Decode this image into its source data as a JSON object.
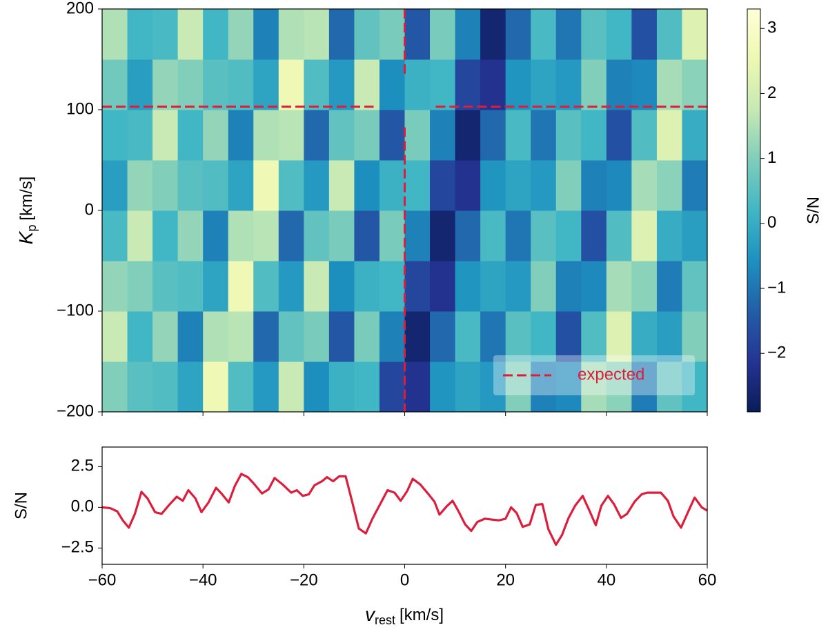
{
  "chart_data": [
    {
      "type": "heatmap",
      "x": [
        -57.5,
        -52.5,
        -47.5,
        -42.5,
        -37.5,
        -32.5,
        -27.5,
        -22.5,
        -17.5,
        -12.5,
        -7.5,
        -2.5,
        2.5,
        7.5,
        12.5,
        17.5,
        22.5,
        27.5,
        32.5,
        37.5,
        42.5,
        47.5,
        52.5,
        57.5
      ],
      "y": [
        -175,
        -125,
        -75,
        -25,
        25,
        75,
        125,
        175
      ],
      "z": [
        [
          1.0,
          0.5,
          0.4,
          -0.2,
          2.6,
          0.4,
          -0.4,
          1.8,
          -0.6,
          0.1,
          0.2,
          -1.8,
          -2.2,
          -0.5,
          -0.2,
          -0.4,
          1.0,
          -0.8,
          -0.7,
          1.4,
          1.1,
          -0.9,
          0.6,
          0.2
        ],
        [
          1.8,
          0.2,
          1.2,
          -0.8,
          1.5,
          1.6,
          -1.2,
          0.6,
          0.9,
          -1.5,
          0.9,
          -0.8,
          -2.6,
          -1.2,
          0.3,
          -1.0,
          0.5,
          0.2,
          -1.6,
          0.4,
          2.2,
          0.0,
          -0.3,
          1.0
        ],
        [
          1.2,
          1.0,
          0.5,
          0.4,
          -0.2,
          2.6,
          0.4,
          -0.4,
          1.8,
          -0.6,
          0.1,
          0.2,
          -1.8,
          -2.2,
          -0.5,
          -0.2,
          -0.4,
          1.0,
          -0.8,
          -0.7,
          1.4,
          1.1,
          -0.9,
          0.6
        ],
        [
          0.3,
          1.8,
          0.2,
          1.2,
          -0.8,
          1.5,
          1.6,
          -1.2,
          0.6,
          0.9,
          -1.5,
          0.9,
          -0.8,
          -2.6,
          -1.2,
          0.3,
          -1.0,
          0.5,
          0.2,
          -1.6,
          0.4,
          2.2,
          0.0,
          -0.3
        ],
        [
          -0.3,
          1.2,
          1.0,
          0.5,
          0.4,
          -0.2,
          2.6,
          0.4,
          -0.4,
          1.8,
          -0.6,
          0.1,
          0.2,
          -1.8,
          -2.2,
          -0.5,
          -0.2,
          -0.4,
          1.0,
          -0.8,
          -0.7,
          1.4,
          1.1,
          -0.9
        ],
        [
          0.2,
          0.3,
          1.8,
          0.2,
          1.2,
          -0.8,
          1.5,
          1.6,
          -1.2,
          0.6,
          0.9,
          -1.5,
          0.9,
          -0.8,
          -2.6,
          -1.2,
          0.3,
          -1.0,
          0.5,
          0.2,
          -1.6,
          0.4,
          2.2,
          0.0
        ],
        [
          0.8,
          -0.3,
          1.2,
          1.0,
          0.5,
          0.4,
          -0.2,
          2.6,
          0.4,
          -0.4,
          1.8,
          -0.6,
          0.1,
          0.2,
          -1.8,
          -2.2,
          -0.5,
          -0.2,
          -0.4,
          1.0,
          -0.8,
          -0.7,
          1.4,
          1.1
        ],
        [
          1.5,
          0.2,
          0.3,
          1.8,
          0.2,
          1.2,
          -0.8,
          1.5,
          1.6,
          -1.2,
          0.6,
          0.9,
          -1.5,
          0.9,
          -0.8,
          -2.6,
          -1.2,
          0.3,
          -1.0,
          0.5,
          0.2,
          -1.6,
          0.4,
          2.2
        ]
      ],
      "xlim": [
        -60,
        60
      ],
      "ylim": [
        -200,
        200
      ],
      "xticks": [
        -60,
        -40,
        -20,
        0,
        20,
        40,
        60
      ],
      "yticks": [
        {
          "value": -200,
          "label": "−200"
        },
        {
          "value": -100,
          "label": "−100"
        },
        0,
        100,
        200
      ],
      "ylabel": {
        "symbol": "K",
        "subscript": "p",
        "unit": "[km/s]"
      },
      "colormap": "YlGnBu_r",
      "clim": [
        -2.9,
        3.3
      ],
      "colorbar_ticks": [
        {
          "value": -2,
          "label": "−2"
        },
        {
          "value": -1,
          "label": "−1"
        },
        0,
        1,
        2,
        3
      ],
      "colorbar_label": "S/N",
      "expected": {
        "v": 0,
        "kp": 103,
        "color": "#dc1e3c",
        "label": "expected"
      },
      "legend": "lower right"
    },
    {
      "type": "line",
      "x": [
        -60,
        -58.4,
        -57,
        -55.9,
        -54.7,
        -53.5,
        -52.2,
        -51,
        -49.5,
        -48.2,
        -46.7,
        -45.2,
        -44,
        -42.9,
        -41.5,
        -40.3,
        -38.9,
        -37.4,
        -36.2,
        -34.9,
        -33.7,
        -32.4,
        -31.1,
        -29.9,
        -28.3,
        -27,
        -25.8,
        -24.2,
        -22.5,
        -21.4,
        -20.2,
        -19,
        -17.9,
        -16.4,
        -15.4,
        -14.2,
        -13,
        -11.7,
        -10.5,
        -9.1,
        -7.7,
        -6.4,
        -4.6,
        -3.4,
        -2,
        -0.8,
        0.5,
        1.6,
        3.1,
        4.6,
        5.9,
        6.9,
        8.3,
        9.5,
        10.6,
        12,
        13.2,
        14.4,
        15.9,
        17.2,
        18.7,
        20,
        21.1,
        22.2,
        23.4,
        24.8,
        26,
        27.3,
        28.5,
        30,
        31.2,
        32.5,
        33.8,
        35.3,
        36.7,
        37.9,
        39,
        40.3,
        41.5,
        42.9,
        44.1,
        45.6,
        47,
        48.1,
        49.6,
        50.8,
        52.2,
        53.3,
        54.8,
        56.1,
        57.5,
        58.9,
        60
      ],
      "values": [
        0.0,
        -0.05,
        -0.25,
        -0.8,
        -1.25,
        -0.4,
        0.95,
        0.55,
        -0.3,
        -0.4,
        0.15,
        0.65,
        0.4,
        1.05,
        0.55,
        -0.3,
        0.3,
        1.2,
        0.8,
        0.3,
        1.3,
        2.05,
        1.85,
        1.45,
        0.85,
        1.1,
        1.8,
        1.4,
        0.9,
        1.05,
        0.7,
        0.8,
        1.35,
        1.6,
        1.85,
        1.6,
        1.9,
        1.9,
        0.45,
        -1.3,
        -1.6,
        -0.7,
        0.35,
        1.05,
        0.9,
        0.4,
        1.0,
        1.75,
        1.4,
        0.85,
        0.35,
        -0.45,
        0.05,
        0.4,
        -0.2,
        -1.05,
        -1.45,
        -0.9,
        -0.7,
        -0.75,
        -0.8,
        -0.7,
        0.0,
        -0.35,
        -1.2,
        -1.05,
        0.15,
        0.2,
        -1.35,
        -2.3,
        -1.7,
        -0.65,
        0.1,
        0.7,
        -0.25,
        -1.1,
        0.1,
        0.7,
        0.2,
        -0.65,
        -0.4,
        0.35,
        0.8,
        0.9,
        0.9,
        0.9,
        0.4,
        -0.55,
        -1.25,
        -0.35,
        0.6,
        0.0,
        -0.2
      ],
      "color": "#dc1e3c",
      "xlim": [
        -60,
        60
      ],
      "ylim": [
        -3.5,
        3.7
      ],
      "xticks": [
        {
          "value": -60,
          "label": "−60"
        },
        {
          "value": -40,
          "label": "−40"
        },
        {
          "value": -20,
          "label": "−20"
        },
        0,
        20,
        40,
        60
      ],
      "yticks": [
        {
          "value": -2.5,
          "label": "−2.5"
        },
        {
          "value": 0,
          "label": "0.0"
        },
        2.5
      ],
      "xlabel": {
        "symbol": "v",
        "subscript": "rest",
        "unit": "[km/s]"
      },
      "ylabel": "S/N"
    }
  ]
}
